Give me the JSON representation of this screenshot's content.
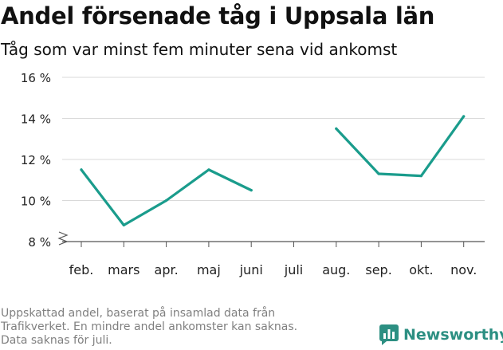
{
  "header": {
    "title": "Andel försenade tåg i Uppsala län",
    "subtitle": "Tåg som var minst fem minuter sena vid ankomst"
  },
  "footnote": {
    "lines": [
      "Uppskattad andel, baserat på insamlad data från",
      "Trafikverket. En mindre andel ankomster kan saknas.",
      "Data saknas för juli."
    ]
  },
  "brand": {
    "label": "Newsworthy",
    "icon": "bar-chart-logo-icon"
  },
  "colors": {
    "line": "#1a9c8c",
    "grid": "#d9d9d9",
    "axis": "#555555",
    "text": "#222222",
    "brand": "#2c8f82"
  },
  "chart_data": {
    "type": "line",
    "title": "Andel försenade tåg i Uppsala län",
    "subtitle": "Tåg som var minst fem minuter sena vid ankomst",
    "categories": [
      "feb.",
      "mars",
      "apr.",
      "maj",
      "juni",
      "juli",
      "aug.",
      "sep.",
      "okt.",
      "nov."
    ],
    "values": [
      11.5,
      8.8,
      10.0,
      11.5,
      10.5,
      null,
      13.5,
      11.3,
      11.2,
      14.1
    ],
    "ylim": [
      8,
      16
    ],
    "yticks": [
      8,
      10,
      12,
      14,
      16
    ],
    "ytick_labels": [
      "8 %",
      "10 %",
      "12 %",
      "14 %",
      "16 %"
    ],
    "y_axis_break": true,
    "grid": true,
    "xlabel": "",
    "ylabel": ""
  }
}
